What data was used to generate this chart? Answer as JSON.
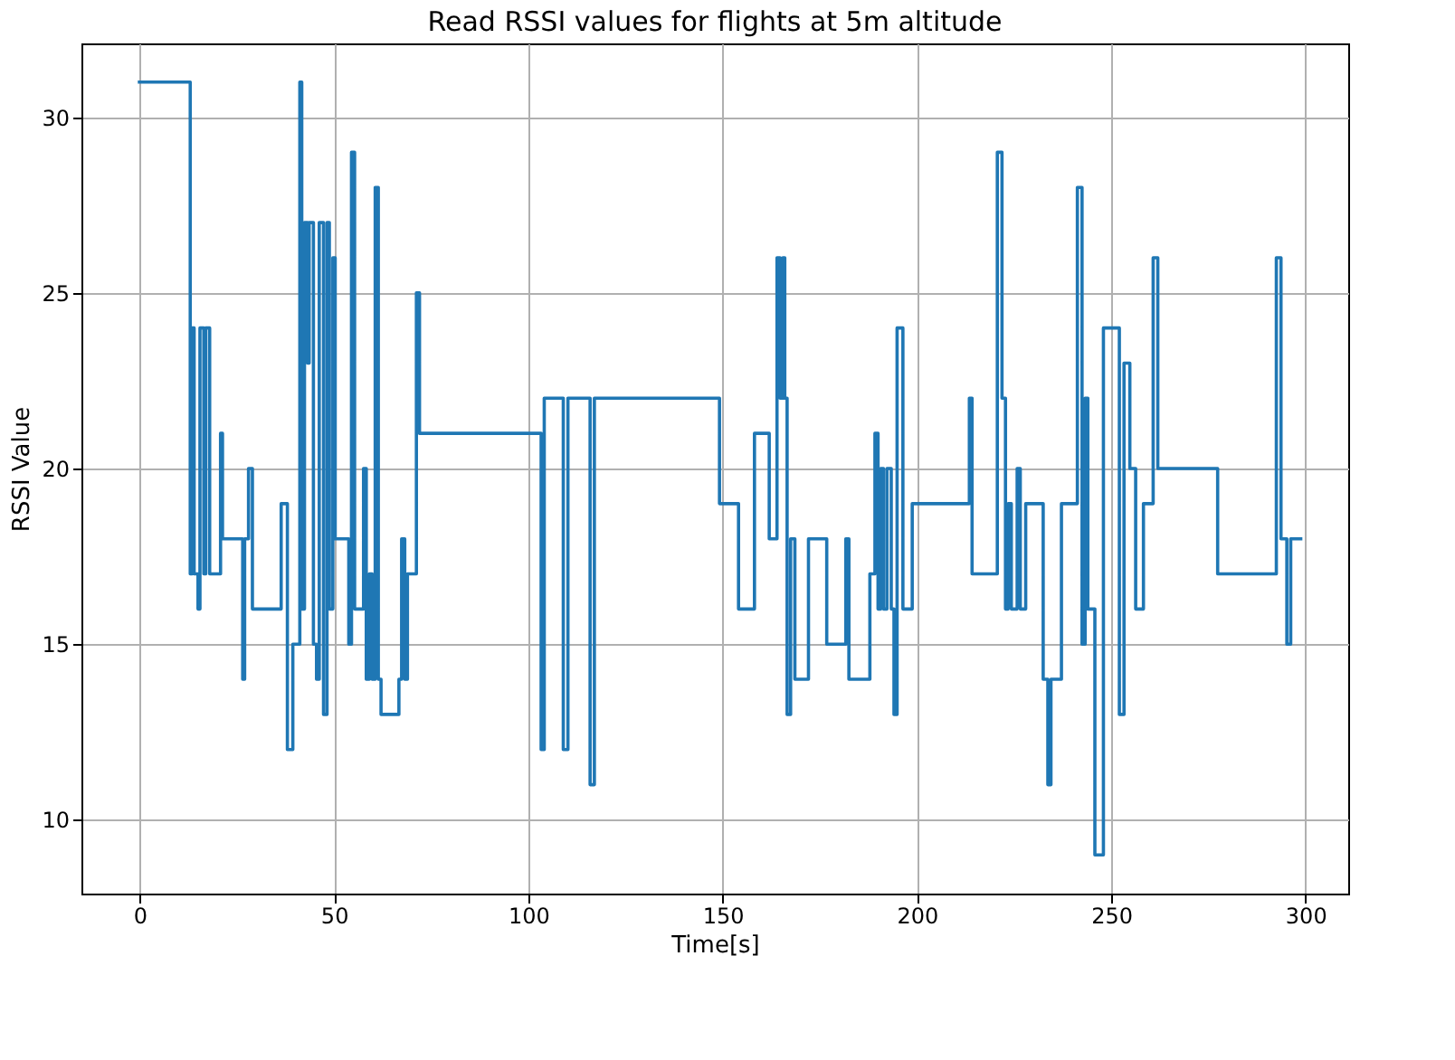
{
  "chart_data": {
    "type": "step",
    "title": "Read RSSI values for flights at 5m altitude",
    "xlabel": "Time[s]",
    "ylabel": "RSSI Value",
    "xlim": [
      -15,
      311
    ],
    "ylim": [
      7.9,
      32.1
    ],
    "xticks": [
      0,
      50,
      100,
      150,
      200,
      250,
      300
    ],
    "yticks": [
      10,
      15,
      20,
      25,
      30
    ],
    "grid": true,
    "series": [
      {
        "color": "#1f77b4",
        "x": [
          -0.5,
          13,
          13.5,
          14,
          15,
          15.5,
          16.5,
          17,
          18,
          20.8,
          21.3,
          26.5,
          27,
          28,
          29,
          36.4,
          38,
          39.4,
          41.2,
          41.7,
          42.4,
          43.2,
          43.6,
          44.7,
          45.5,
          46.2,
          47.3,
          48.2,
          48.8,
          49.7,
          50.3,
          53.8,
          54.5,
          55.3,
          57.6,
          58.3,
          59.1,
          59.8,
          60.6,
          61.4,
          62.1,
          66.7,
          67.4,
          68.2,
          68.9,
          71.2,
          72,
          103.3,
          104.1,
          109,
          110.2,
          115.9,
          117,
          149.2,
          154.1,
          158.2,
          162,
          164,
          164.8,
          165.5,
          166,
          166.6,
          167.5,
          168.6,
          172.1,
          176.8,
          181.7,
          182.5,
          187.9,
          189.2,
          190,
          190.7,
          191.4,
          192.3,
          193.4,
          194.1,
          194.9,
          196.4,
          198.8,
          213.5,
          214.2,
          220.7,
          221.9,
          222.8,
          223.5,
          224.3,
          225.8,
          226.6,
          228,
          232.5,
          233.7,
          234.5,
          237.2,
          241.3,
          242.5,
          243.3,
          244,
          245.8,
          248,
          252.1,
          253.3,
          254.8,
          256.3,
          258.3,
          260.8,
          262,
          277.4,
          292.5,
          293.7,
          295.2,
          296.2,
          299.2
        ],
        "values": [
          31,
          17,
          24,
          17,
          16,
          24,
          17,
          24,
          17,
          21,
          18,
          14,
          18,
          20,
          16,
          19,
          12,
          15,
          31,
          16,
          27,
          23,
          27,
          15,
          14,
          27,
          13,
          27,
          16,
          26,
          18,
          15,
          29,
          16,
          20,
          14,
          17,
          14,
          28,
          14,
          13,
          14,
          18,
          14,
          17,
          25,
          21,
          12,
          22,
          12,
          22,
          11,
          22,
          19,
          16,
          21,
          18,
          26,
          22,
          26,
          22,
          13,
          18,
          14,
          18,
          15,
          18,
          14,
          17,
          21,
          16,
          20,
          16,
          20,
          16,
          13,
          24,
          16,
          19,
          22,
          17,
          29,
          22,
          16,
          19,
          16,
          20,
          16,
          19,
          14,
          11,
          14,
          19,
          28,
          15,
          22,
          16,
          9,
          24,
          13,
          23,
          20,
          16,
          19,
          26,
          20,
          17,
          26,
          18,
          15,
          18,
          18
        ]
      }
    ]
  }
}
